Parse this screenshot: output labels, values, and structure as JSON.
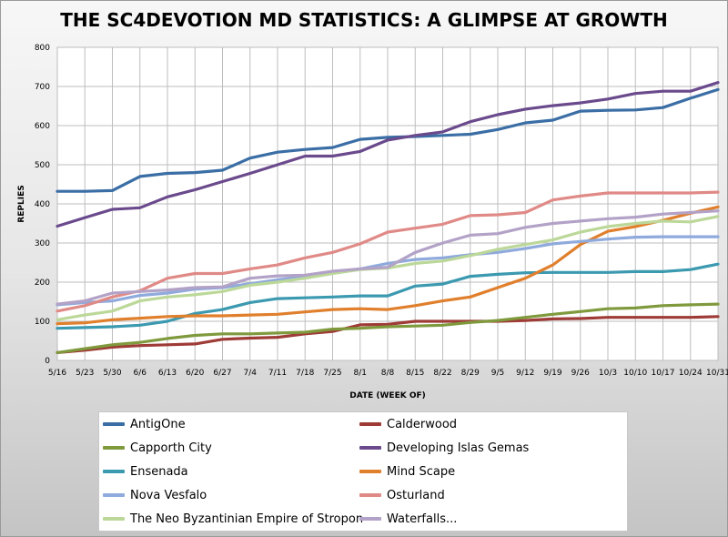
{
  "chart_data": {
    "type": "line",
    "title": "THE SC4DEVOTION MD STATISTICS: A GLIMPSE AT GROWTH",
    "xlabel": "DATE (WEEK OF)",
    "ylabel": "REPLIES",
    "ylim": [
      0,
      800
    ],
    "yticks": [
      "0",
      "100",
      "200",
      "300",
      "400",
      "500",
      "600",
      "700",
      "800"
    ],
    "grid": true,
    "legend_position": "bottom",
    "categories": [
      "5/16",
      "5/23",
      "5/30",
      "6/6",
      "6/13",
      "6/20",
      "6/27",
      "7/4",
      "7/11",
      "7/18",
      "7/25",
      "8/1",
      "8/8",
      "8/15",
      "8/22",
      "8/29",
      "9/5",
      "9/12",
      "9/19",
      "9/26",
      "10/3",
      "10/10",
      "10/17",
      "10/24",
      "10/31"
    ],
    "series": [
      {
        "name": "AntigOne",
        "color": "#3a6ea5",
        "values": [
          432,
          432,
          434,
          470,
          478,
          480,
          486,
          517,
          532,
          539,
          544,
          565,
          570,
          572,
          575,
          578,
          590,
          607,
          614,
          637,
          639,
          640,
          646,
          670,
          692
        ]
      },
      {
        "name": "Calderwood",
        "color": "#9e3b36",
        "values": [
          20,
          26,
          34,
          38,
          40,
          42,
          54,
          57,
          59,
          68,
          74,
          91,
          92,
          100,
          100,
          100,
          100,
          102,
          106,
          107,
          110,
          110,
          110,
          110,
          112
        ]
      },
      {
        "name": "Capporth City",
        "color": "#7f9a3d",
        "values": [
          20,
          30,
          40,
          46,
          56,
          64,
          68,
          68,
          70,
          72,
          80,
          82,
          86,
          88,
          90,
          97,
          102,
          110,
          118,
          125,
          132,
          134,
          140,
          142,
          144
        ]
      },
      {
        "name": "Developing Islas Gemas",
        "color": "#6a4a8c",
        "values": [
          343,
          365,
          386,
          390,
          418,
          436,
          457,
          478,
          500,
          522,
          522,
          534,
          563,
          575,
          584,
          610,
          628,
          642,
          651,
          658,
          668,
          682,
          688,
          688,
          710
        ]
      },
      {
        "name": "Ensenada",
        "color": "#3b99b0",
        "values": [
          82,
          84,
          86,
          90,
          100,
          120,
          130,
          148,
          158,
          160,
          162,
          165,
          165,
          190,
          195,
          215,
          220,
          224,
          225,
          225,
          225,
          227,
          227,
          232,
          246
        ]
      },
      {
        "name": "Mind Scape",
        "color": "#e07f2c",
        "values": [
          94,
          96,
          104,
          108,
          112,
          114,
          114,
          116,
          118,
          124,
          130,
          132,
          130,
          140,
          152,
          162,
          186,
          210,
          244,
          296,
          330,
          342,
          358,
          376,
          392
        ]
      },
      {
        "name": "Nova Vesfalo",
        "color": "#8faadc",
        "values": [
          142,
          148,
          152,
          166,
          172,
          182,
          186,
          196,
          206,
          214,
          224,
          234,
          248,
          258,
          262,
          270,
          276,
          286,
          298,
          304,
          310,
          315,
          316,
          316,
          316
        ]
      },
      {
        "name": "Osturland",
        "color": "#e08a87",
        "values": [
          126,
          140,
          162,
          178,
          210,
          222,
          222,
          234,
          244,
          262,
          276,
          298,
          328,
          338,
          348,
          370,
          372,
          378,
          410,
          420,
          428,
          428,
          428,
          428,
          430
        ]
      },
      {
        "name": "The Neo Byzantinian Empire of Stropon",
        "color": "#bcd899",
        "values": [
          104,
          116,
          126,
          152,
          162,
          168,
          176,
          192,
          200,
          210,
          222,
          232,
          236,
          248,
          254,
          268,
          284,
          296,
          308,
          328,
          342,
          350,
          356,
          354,
          368
        ]
      },
      {
        "name": "Waterfalls...",
        "color": "#b3a2c7",
        "values": [
          144,
          152,
          172,
          176,
          180,
          186,
          188,
          210,
          216,
          218,
          228,
          234,
          238,
          276,
          300,
          320,
          324,
          340,
          350,
          356,
          362,
          366,
          374,
          378,
          382
        ]
      }
    ]
  }
}
